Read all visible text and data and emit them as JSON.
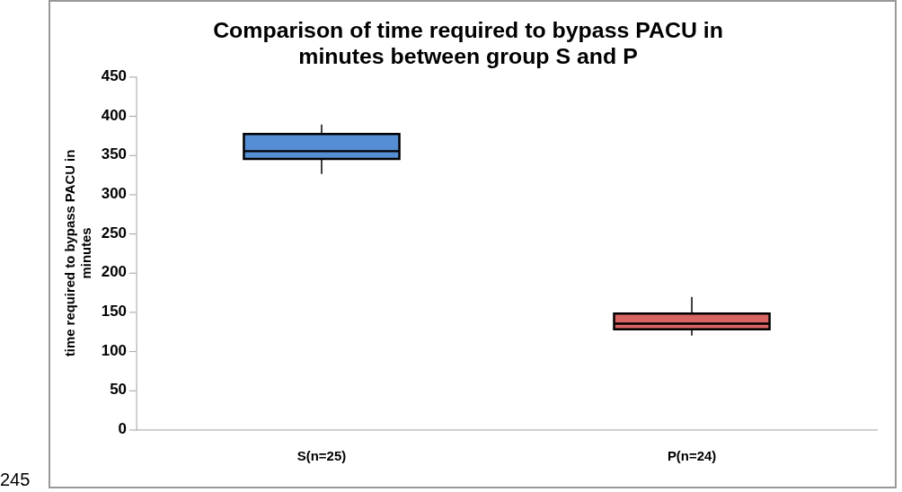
{
  "chart_data": {
    "type": "box",
    "title": "Comparison of time required to bypass PACU in minutes between group S and P",
    "ylabel": "time required to bypass PACU in minutes",
    "categories": [
      "S(n=25)",
      "P(n=24)"
    ],
    "boxes": [
      {
        "low": 326,
        "q1": 345,
        "median": 355,
        "q3": 377,
        "high": 389
      },
      {
        "low": 120,
        "q1": 128,
        "median": 135,
        "q3": 148,
        "high": 169
      }
    ],
    "colors": [
      "#558ed5",
      "#d86464"
    ],
    "ylim": [
      0,
      450
    ],
    "yticks": [
      0,
      50,
      100,
      150,
      200,
      250,
      300,
      350,
      400,
      450
    ],
    "grid": false,
    "annotations": [
      "245"
    ]
  }
}
